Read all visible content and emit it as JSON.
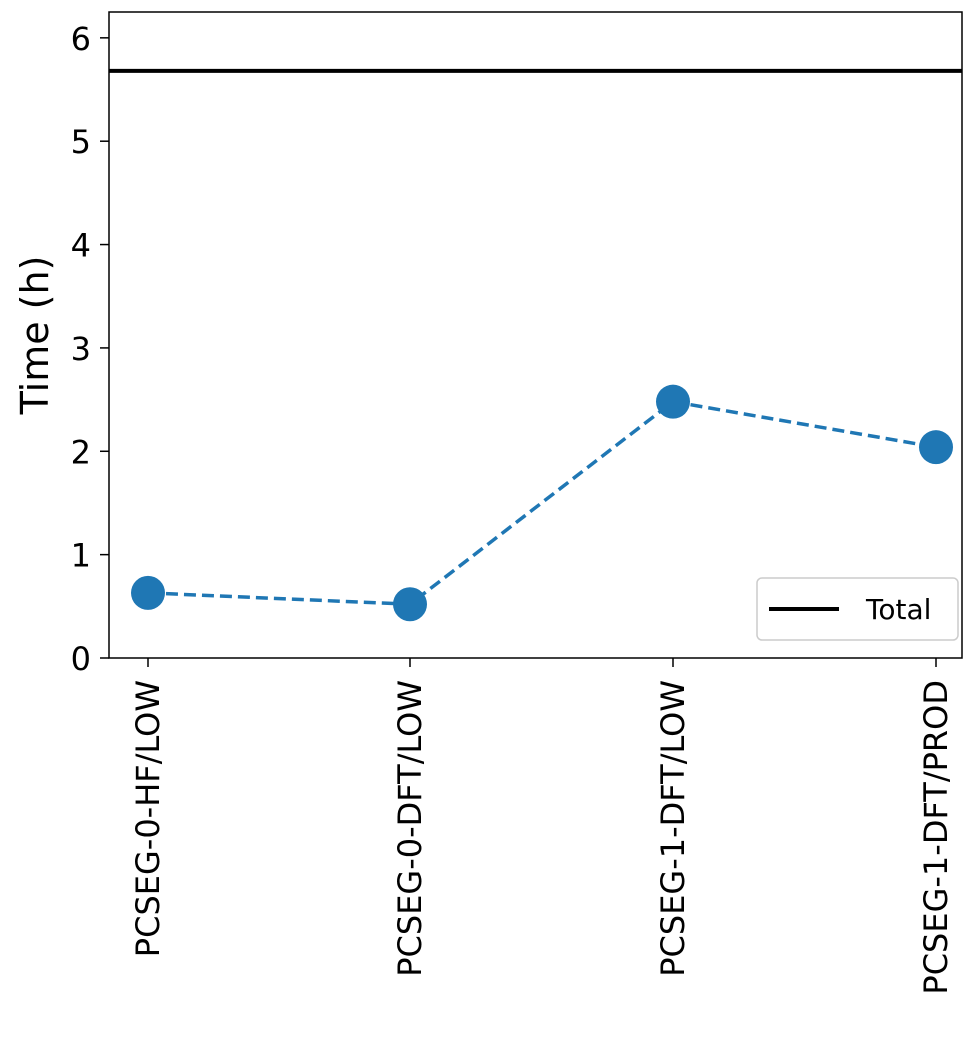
{
  "chart_data": {
    "type": "line",
    "title": "",
    "xlabel": "",
    "ylabel": "Time (h)",
    "categories": [
      "PCSEG-0-HF/LOW",
      "PCSEG-0-DFT/LOW",
      "PCSEG-1-DFT/LOW",
      "PCSEG-1-DFT/PROD"
    ],
    "series": [
      {
        "values": [
          0.63,
          0.52,
          2.48,
          2.04
        ],
        "color": "#1f77b4",
        "line_style": "dashed",
        "marker": "circle"
      }
    ],
    "reference_lines": [
      {
        "name": "Total",
        "y": 5.68,
        "color": "#000000"
      }
    ],
    "yticks": [
      "0",
      "1",
      "2",
      "3",
      "4",
      "5",
      "6"
    ],
    "ylim": [
      0,
      6.25
    ],
    "grid": false,
    "legend": {
      "placement": "lower-right",
      "entries": [
        "Total"
      ]
    }
  }
}
